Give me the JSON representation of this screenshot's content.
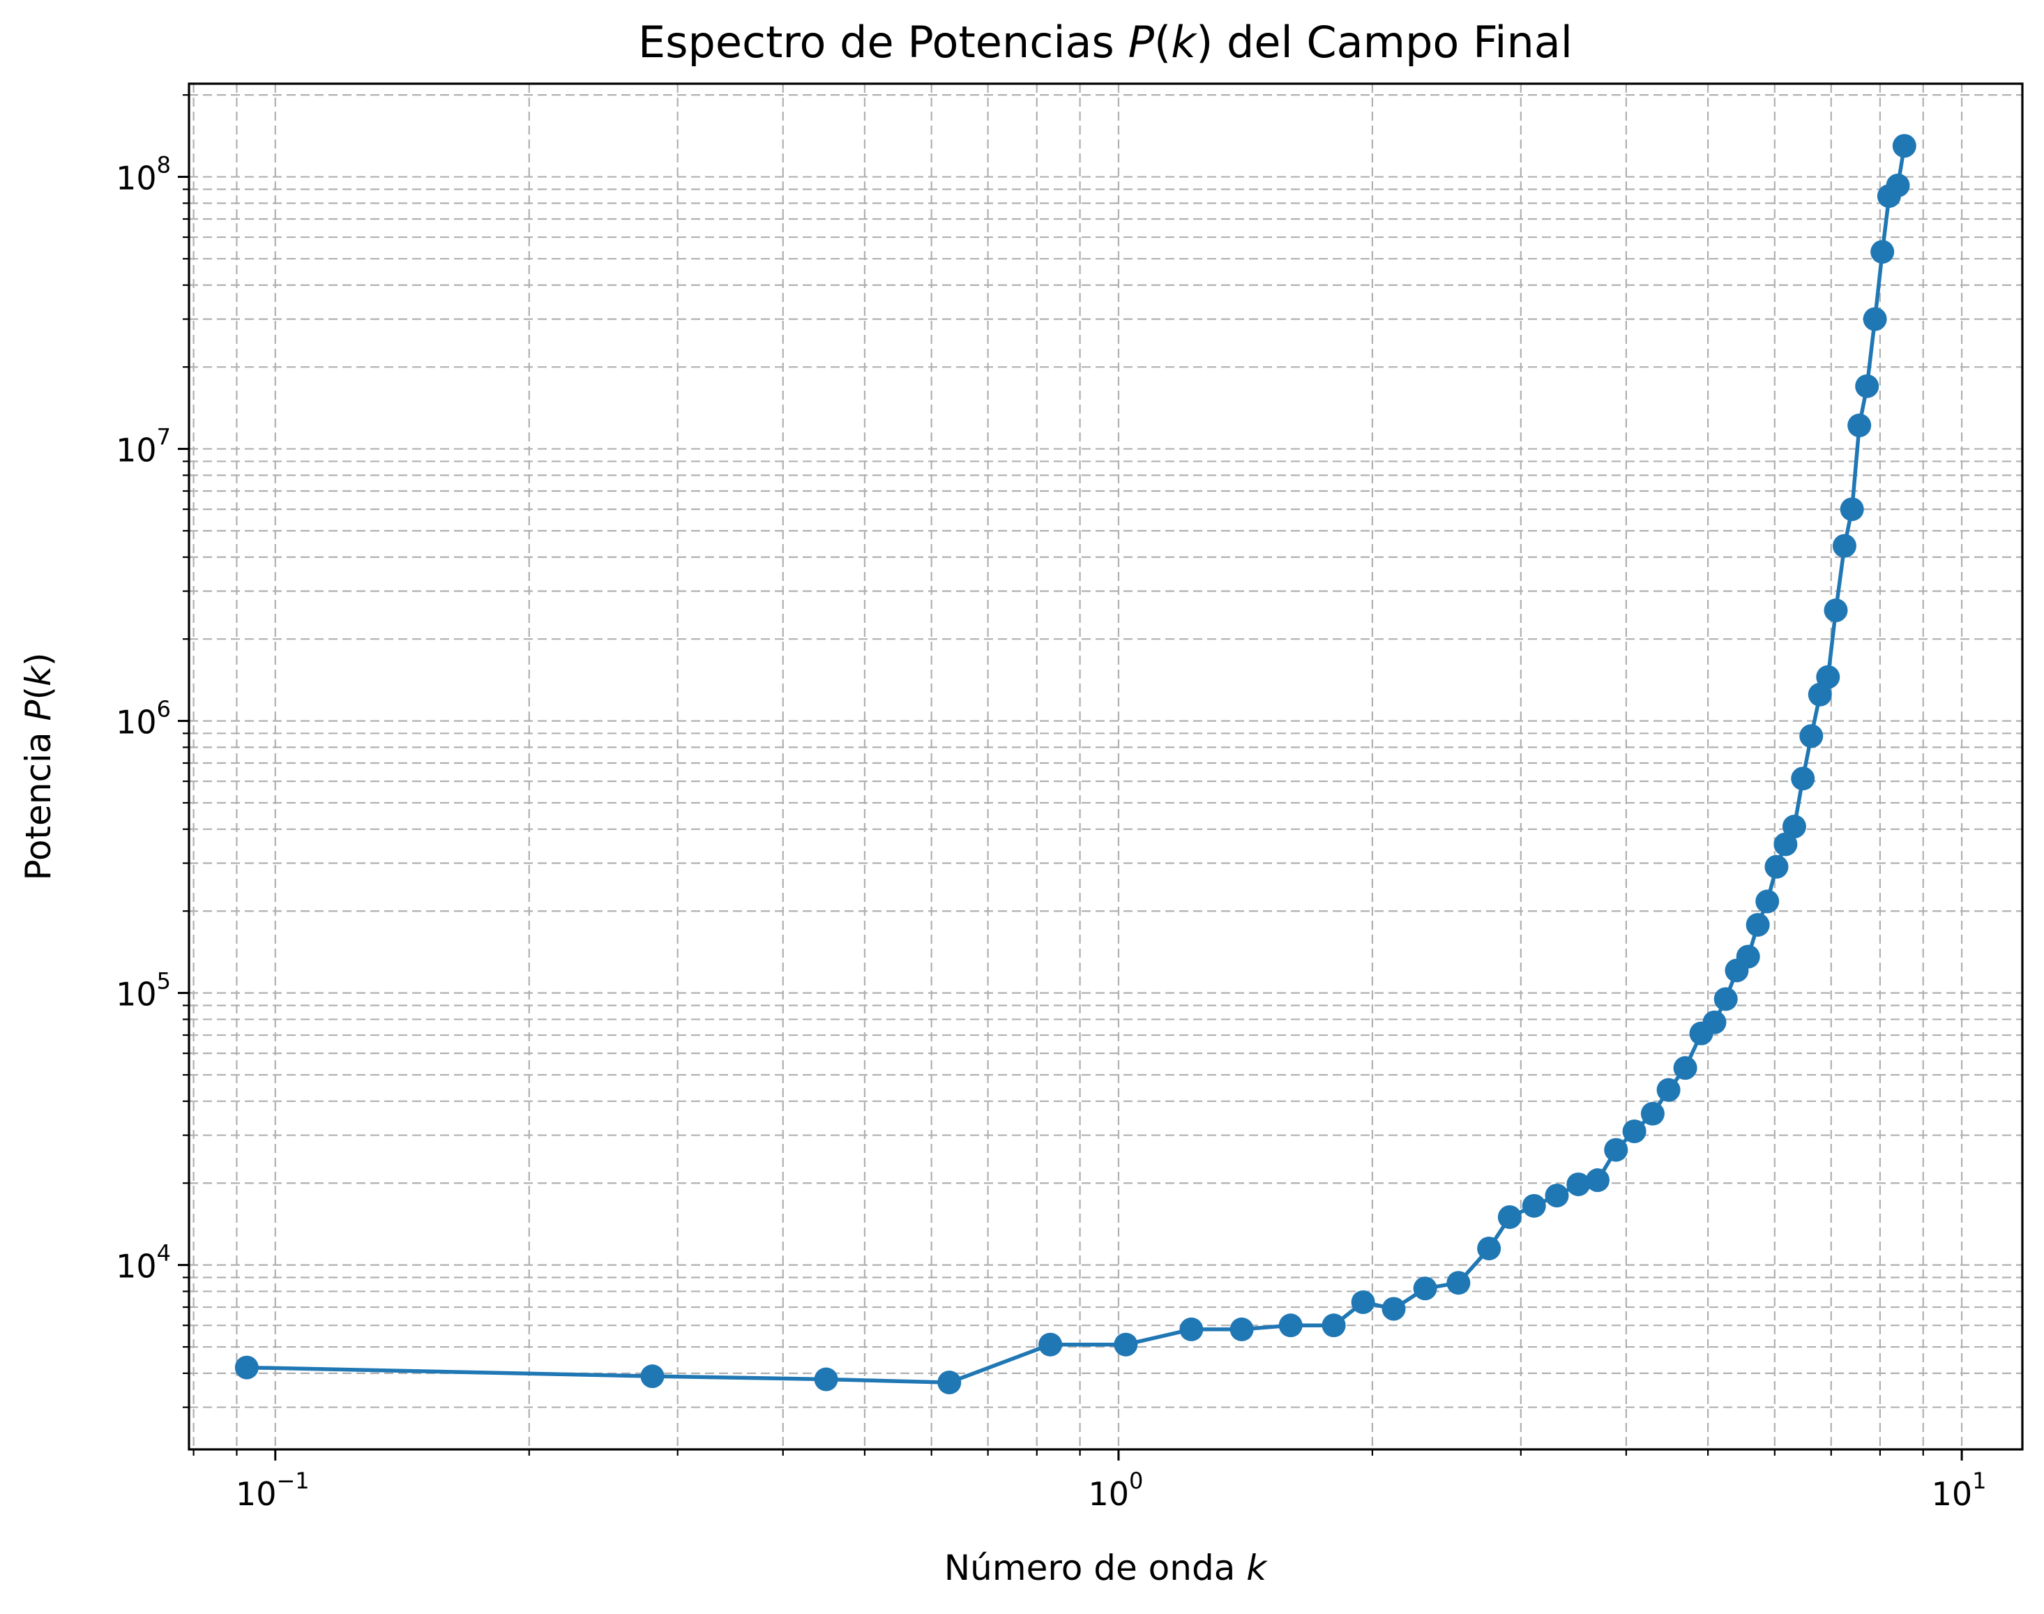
{
  "chart_data": {
    "type": "line",
    "title": "Espectro de Potencias P(k) del Campo Final",
    "title_parts": [
      "Espectro de Potencias ",
      "P",
      "(",
      "k",
      ") del Campo Final"
    ],
    "xlabel": "Número de onda k",
    "xlabel_parts": [
      "Número de onda ",
      "k"
    ],
    "ylabel": "Potencia P(k)",
    "ylabel_parts": [
      "Potencia ",
      "P",
      "(",
      "k",
      ")"
    ],
    "x_scale": "log",
    "y_scale": "log",
    "xlim": [
      0.079,
      11.8
    ],
    "ylim": [
      2100,
      220000000
    ],
    "x_ticks": [
      {
        "value": 0.1,
        "base": "10",
        "exp": "−1"
      },
      {
        "value": 1,
        "base": "10",
        "exp": "0"
      },
      {
        "value": 10,
        "base": "10",
        "exp": "1"
      }
    ],
    "y_ticks": [
      {
        "value": 10000,
        "base": "10",
        "exp": "4"
      },
      {
        "value": 100000,
        "base": "10",
        "exp": "5"
      },
      {
        "value": 1000000,
        "base": "10",
        "exp": "6"
      },
      {
        "value": 10000000,
        "base": "10",
        "exp": "7"
      },
      {
        "value": 100000000,
        "base": "10",
        "exp": "8"
      }
    ],
    "grid": true,
    "grid_which": "both",
    "legend": null,
    "series": [
      {
        "color": "#1f77b4",
        "marker": "circle",
        "points": [
          [
            0.0925,
            4200
          ],
          [
            0.28,
            3900
          ],
          [
            0.45,
            3800
          ],
          [
            0.63,
            3700
          ],
          [
            0.83,
            5100
          ],
          [
            1.02,
            5100
          ],
          [
            1.22,
            5800
          ],
          [
            1.4,
            5800
          ],
          [
            1.6,
            6000
          ],
          [
            1.8,
            6000
          ],
          [
            1.95,
            7300
          ],
          [
            2.12,
            6900
          ],
          [
            2.31,
            8200
          ],
          [
            2.53,
            8600
          ],
          [
            2.75,
            11500
          ],
          [
            2.91,
            15000
          ],
          [
            3.11,
            16500
          ],
          [
            3.31,
            18000
          ],
          [
            3.51,
            19800
          ],
          [
            3.7,
            20500
          ],
          [
            3.89,
            26500
          ],
          [
            4.09,
            31000
          ],
          [
            4.3,
            36000
          ],
          [
            4.49,
            44000
          ],
          [
            4.7,
            53000
          ],
          [
            4.91,
            71000
          ],
          [
            5.09,
            78000
          ],
          [
            5.25,
            95000
          ],
          [
            5.41,
            121000
          ],
          [
            5.58,
            136000
          ],
          [
            5.73,
            178000
          ],
          [
            5.88,
            217000
          ],
          [
            6.03,
            291000
          ],
          [
            6.18,
            352000
          ],
          [
            6.33,
            409000
          ],
          [
            6.48,
            614000
          ],
          [
            6.63,
            880000
          ],
          [
            6.79,
            1250000
          ],
          [
            6.94,
            1450000
          ],
          [
            7.09,
            2550000
          ],
          [
            7.26,
            4400000
          ],
          [
            7.41,
            6000000
          ],
          [
            7.56,
            12200000
          ],
          [
            7.72,
            17000000
          ],
          [
            7.89,
            30000000
          ],
          [
            8.05,
            53000000
          ],
          [
            8.2,
            85000000
          ],
          [
            8.4,
            93000000
          ],
          [
            8.55,
            130000000
          ]
        ]
      }
    ]
  }
}
